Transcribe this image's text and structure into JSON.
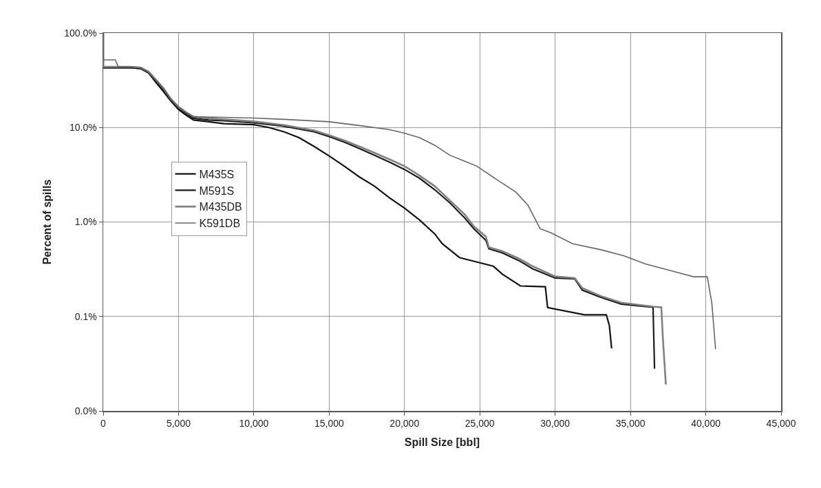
{
  "chart_data": {
    "type": "line",
    "xlabel": "Spill Size [bbl]",
    "ylabel": "Percent of spills",
    "log": "y",
    "grid": true,
    "legend": "left",
    "marker": "none",
    "line_style": "solid",
    "xlim": [
      0,
      45000
    ],
    "xticks": [
      0,
      {
        "value": 5000,
        "label": "5,000"
      },
      {
        "value": 10000,
        "label": "10,000"
      },
      {
        "value": 15000,
        "label": "15,000"
      },
      {
        "value": 20000,
        "label": "20,000"
      },
      {
        "value": 25000,
        "label": "25,000"
      },
      {
        "value": 30000,
        "label": "30,000"
      },
      {
        "value": 35000,
        "label": "35,000"
      },
      {
        "value": 40000,
        "label": "40,000"
      },
      {
        "value": 45000,
        "label": "45,000"
      }
    ],
    "ylim": [
      0.01,
      100
    ],
    "yticks": [
      {
        "value": 0.01,
        "label": "0.0%"
      },
      {
        "value": 0.1,
        "label": "0.1%"
      },
      {
        "value": 1,
        "label": "1.0%"
      },
      {
        "value": 10,
        "label": "10.0%"
      },
      {
        "value": 100,
        "label": "100.0%"
      }
    ],
    "series": [
      {
        "name": "M435S",
        "color": "#111111",
        "x": [
          0,
          0,
          1800,
          2500,
          3000,
          3500,
          4000,
          4500,
          5000,
          5500,
          6000,
          7000,
          8000,
          10000,
          11000,
          12000,
          13000,
          14000,
          15000,
          16000,
          17000,
          18000,
          19000,
          20000,
          21000,
          22000,
          22500,
          23650,
          25000,
          25900,
          26500,
          27700,
          29350,
          29500,
          31950,
          33400,
          33600,
          33750
        ],
        "values": [
          100,
          43,
          43,
          42,
          38,
          30,
          24,
          19,
          15.5,
          13.5,
          12,
          11.5,
          11,
          10.7,
          10,
          9,
          7.8,
          6.3,
          5,
          3.9,
          3,
          2.4,
          1.8,
          1.4,
          1.05,
          0.75,
          0.59,
          0.42,
          0.37,
          0.34,
          0.28,
          0.21,
          0.206,
          0.124,
          0.104,
          0.104,
          0.08,
          0.046
        ]
      },
      {
        "name": "M591S",
        "color": "#1a1a1a",
        "x": [
          0,
          0,
          1800,
          2500,
          3000,
          3500,
          4000,
          4500,
          5000,
          5500,
          6000,
          7000,
          8000,
          10000,
          12000,
          14000,
          15000,
          16000,
          17000,
          18000,
          19000,
          20000,
          21000,
          22000,
          23000,
          24000,
          24600,
          25400,
          25600,
          26500,
          27600,
          28500,
          30000,
          31300,
          31800,
          33000,
          34400,
          36500,
          36600
        ],
        "values": [
          100,
          43,
          43,
          42,
          38,
          31,
          25,
          19.5,
          16,
          14,
          12.5,
          12,
          11.8,
          11.2,
          10.3,
          9,
          8,
          7,
          6,
          5.1,
          4.3,
          3.6,
          2.9,
          2.2,
          1.6,
          1.1,
          0.85,
          0.64,
          0.52,
          0.47,
          0.39,
          0.32,
          0.255,
          0.25,
          0.19,
          0.16,
          0.135,
          0.125,
          0.028
        ]
      },
      {
        "name": "M435DB",
        "color": "#808080",
        "x": [
          0,
          0,
          1800,
          2500,
          3000,
          3500,
          4000,
          4500,
          5000,
          5500,
          6000,
          7000,
          8000,
          10000,
          12000,
          14000,
          15000,
          16000,
          17000,
          18000,
          19000,
          20000,
          21000,
          22000,
          23000,
          24000,
          24600,
          25400,
          25600,
          26500,
          27600,
          28500,
          30000,
          31300,
          31800,
          33000,
          34400,
          36500,
          37050,
          37150,
          37350
        ],
        "values": [
          100,
          44,
          44,
          43,
          39,
          32,
          26,
          20,
          16.5,
          14.5,
          13,
          12.5,
          12.2,
          11.6,
          10.6,
          9.3,
          8.3,
          7.3,
          6.3,
          5.4,
          4.6,
          3.9,
          3.1,
          2.4,
          1.7,
          1.2,
          0.9,
          0.7,
          0.54,
          0.49,
          0.41,
          0.34,
          0.265,
          0.255,
          0.2,
          0.165,
          0.14,
          0.127,
          0.125,
          0.06,
          0.019
        ]
      },
      {
        "name": "K591DB",
        "color": "#666666",
        "x": [
          0,
          0,
          800,
          1000,
          1800,
          2500,
          3000,
          3500,
          4000,
          4500,
          5000,
          5500,
          6000,
          8000,
          10000,
          12000,
          15000,
          17000,
          19000,
          20000,
          21000,
          22000,
          23000,
          24000,
          24800,
          26000,
          27400,
          28200,
          29000,
          29700,
          31150,
          33000,
          34550,
          36000,
          37850,
          39200,
          40100,
          40400,
          40650
        ],
        "values": [
          100,
          52,
          52,
          44,
          44,
          43,
          39,
          32,
          26,
          20,
          16.5,
          14.5,
          13,
          12.8,
          12.6,
          12.2,
          11.5,
          10.5,
          9.5,
          8.7,
          7.8,
          6.5,
          5.1,
          4.4,
          3.9,
          2.9,
          2.07,
          1.5,
          0.85,
          0.77,
          0.59,
          0.51,
          0.44,
          0.36,
          0.3,
          0.263,
          0.263,
          0.14,
          0.045
        ]
      }
    ]
  }
}
